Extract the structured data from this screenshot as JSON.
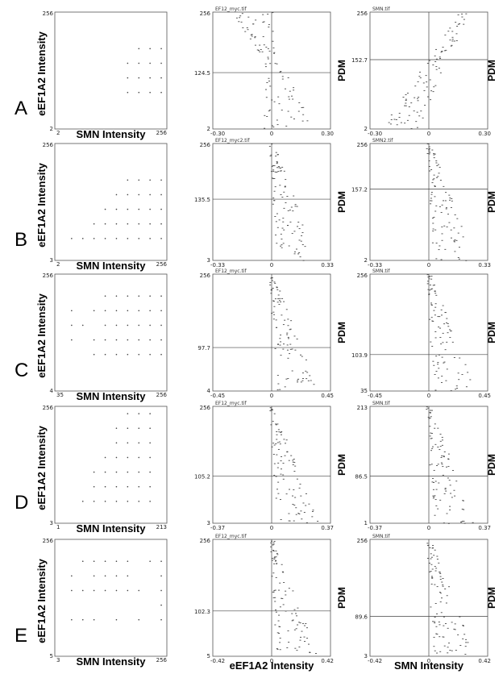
{
  "rows": [
    {
      "letter": "A",
      "scatter": {
        "x_label": "SMN Intensity",
        "y_label": "eEF1A2 Intensity",
        "x_min": "2",
        "x_max": "256",
        "y_min": "2",
        "y_max": "256",
        "xlim": [
          2,
          256
        ],
        "ylim": [
          2,
          256
        ]
      },
      "pdm1": {
        "file": "EF12_myc.tif",
        "x_min": "-0.30",
        "x_zero": "0",
        "x_max": "0.30",
        "y_min": "2",
        "y_mid": "124.5",
        "y_max": "256",
        "xlim": [
          -0.3,
          0.3
        ],
        "ylim": [
          2,
          256
        ],
        "y_mid_value": 124.5
      },
      "pdm2": {
        "file": "SMN.tif",
        "x_min": "-0.30",
        "x_zero": "0",
        "x_max": "0.30",
        "y_min": "2",
        "y_mid": "152.7",
        "y_max": "256",
        "xlim": [
          -0.3,
          0.3
        ],
        "ylim": [
          2,
          256
        ],
        "y_mid_value": 152.7
      }
    },
    {
      "letter": "B",
      "scatter": {
        "x_label": "SMN Intensity",
        "y_label": "eEF1A2 Intensity",
        "x_min": "2",
        "x_max": "256",
        "y_min": "3",
        "y_max": "256",
        "xlim": [
          2,
          256
        ],
        "ylim": [
          3,
          256
        ]
      },
      "pdm1": {
        "file": "EF12_myc2.tif",
        "x_min": "-0.33",
        "x_zero": "0",
        "x_max": "0.33",
        "y_min": "3",
        "y_mid": "135.5",
        "y_max": "256",
        "xlim": [
          -0.33,
          0.33
        ],
        "ylim": [
          3,
          256
        ],
        "y_mid_value": 135.5
      },
      "pdm2": {
        "file": "SMN2.tif",
        "x_min": "-0.33",
        "x_zero": "0",
        "x_max": "0.33",
        "y_min": "2",
        "y_mid": "157.2",
        "y_max": "256",
        "xlim": [
          -0.33,
          0.33
        ],
        "ylim": [
          2,
          256
        ],
        "y_mid_value": 157.2
      }
    },
    {
      "letter": "C",
      "scatter": {
        "x_label": "SMN Intensity",
        "y_label": "eEF1A2 Intensity",
        "x_min": "35",
        "x_max": "256",
        "y_min": "4",
        "y_max": "256",
        "xlim": [
          35,
          256
        ],
        "ylim": [
          4,
          256
        ]
      },
      "pdm1": {
        "file": "EF12_myc.tif",
        "x_min": "-0.45",
        "x_zero": "0",
        "x_max": "0.45",
        "y_min": "4",
        "y_mid": "97.7",
        "y_max": "256",
        "xlim": [
          -0.45,
          0.45
        ],
        "ylim": [
          4,
          256
        ],
        "y_mid_value": 97.7
      },
      "pdm2": {
        "file": "SMN.tif",
        "x_min": "-0.45",
        "x_zero": "0",
        "x_max": "0.45",
        "y_min": "35",
        "y_mid": "103.9",
        "y_max": "256",
        "xlim": [
          -0.45,
          0.45
        ],
        "ylim": [
          35,
          256
        ],
        "y_mid_value": 103.9
      }
    },
    {
      "letter": "D",
      "scatter": {
        "x_label": "SMN Intensity",
        "y_label": "eEF1A2 Intensity",
        "x_min": "1",
        "x_max": "213",
        "y_min": "3",
        "y_max": "256",
        "xlim": [
          1,
          213
        ],
        "ylim": [
          3,
          256
        ]
      },
      "pdm1": {
        "file": "EF12_myc.tif",
        "x_min": "-0.37",
        "x_zero": "0",
        "x_max": "0.37",
        "y_min": "3",
        "y_mid": "105.2",
        "y_max": "256",
        "xlim": [
          -0.37,
          0.37
        ],
        "ylim": [
          3,
          256
        ],
        "y_mid_value": 105.2
      },
      "pdm2": {
        "file": "SMN.tif",
        "x_min": "-0.37",
        "x_zero": "0",
        "x_max": "0.37",
        "y_min": "1",
        "y_mid": "86.5",
        "y_max": "213",
        "xlim": [
          -0.37,
          0.37
        ],
        "ylim": [
          1,
          213
        ],
        "y_mid_value": 86.5
      }
    },
    {
      "letter": "E",
      "scatter": {
        "x_label": "SMN Intensity",
        "y_label": "eEF1A2 Intensity",
        "x_min": "3",
        "x_max": "256",
        "y_min": "5",
        "y_max": "256",
        "xlim": [
          3,
          256
        ],
        "ylim": [
          5,
          256
        ]
      },
      "pdm1": {
        "file": "EF12_myc.tif",
        "x_min": "-0.42",
        "x_zero": "0",
        "x_max": "0.42",
        "y_min": "5",
        "y_mid": "102.3",
        "y_max": "256",
        "xlim": [
          -0.42,
          0.42
        ],
        "ylim": [
          5,
          256
        ],
        "y_mid_value": 102.3
      },
      "pdm2": {
        "file": "SMN.tif",
        "x_min": "-0.42",
        "x_zero": "0",
        "x_max": "0.42",
        "y_min": "3",
        "y_mid": "89.6",
        "y_max": "256",
        "xlim": [
          -0.42,
          0.42
        ],
        "ylim": [
          3,
          256
        ],
        "y_mid_value": 89.6
      }
    }
  ],
  "pdm_label": "PDM",
  "bottom_labels": {
    "pdm1_x": "eEF1A2 Intensity",
    "pdm2_x": "SMN Intensity"
  },
  "colors": {
    "points": "#444444",
    "frame": "#555555"
  }
}
